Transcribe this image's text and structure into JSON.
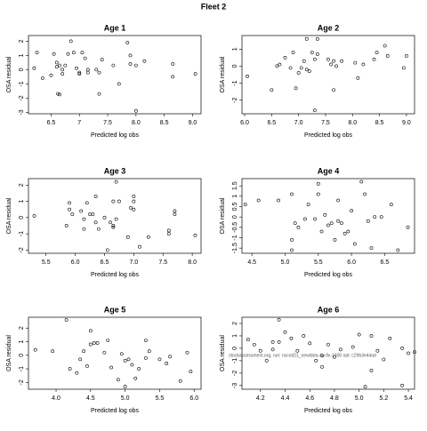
{
  "title": "Fleet 2",
  "footnote": "stockassessment.org, run: nscod21_newdata-4p-fix-1400 opt: c29b3e44ad",
  "chart_data": [
    {
      "type": "scatter",
      "title": "Age 1",
      "xlabel": "Predicted log obs",
      "ylabel": "OSA residual",
      "x": [
        6.2,
        6.25,
        6.35,
        6.5,
        6.55,
        6.6,
        6.6,
        6.62,
        6.65,
        6.65,
        6.7,
        6.7,
        6.75,
        6.8,
        6.85,
        6.9,
        6.95,
        7.0,
        7.0,
        7.05,
        7.1,
        7.15,
        7.15,
        7.3,
        7.35,
        7.35,
        7.4,
        7.6,
        7.7,
        7.85,
        7.9,
        7.9,
        8.0,
        8.0,
        8.15,
        8.65,
        8.65,
        9.05
      ],
      "values": [
        0.1,
        1.2,
        -0.6,
        -0.4,
        1.1,
        0.5,
        0.2,
        -1.7,
        -1.75,
        0.3,
        0,
        -0.3,
        0.3,
        1.1,
        2.0,
        1.2,
        0.1,
        -0.2,
        -0.3,
        1.2,
        0.8,
        -0.2,
        0,
        0,
        -0.2,
        -1.7,
        0.7,
        0.3,
        -1.0,
        1.9,
        0.4,
        1.0,
        -2.9,
        0.3,
        0.6,
        0.4,
        -0.5,
        -0.3
      ],
      "xlim": [
        6.1,
        9.15
      ],
      "ylim": [
        -3.1,
        2.4
      ],
      "xticks": [
        6.5,
        7.0,
        7.5,
        {
          "value": 8,
          "label": "8.0"
        },
        8.5,
        {
          "value": 9,
          "label": "9.0"
        }
      ],
      "yticks": [
        -3,
        -2,
        -1,
        0,
        1,
        2
      ]
    },
    {
      "type": "scatter",
      "title": "Age 2",
      "xlabel": "Predicted log obs",
      "ylabel": "OSA residual",
      "x": [
        6.05,
        6.5,
        6.6,
        6.65,
        6.75,
        6.85,
        6.9,
        6.95,
        7.0,
        7.05,
        7.1,
        7.15,
        7.15,
        7.2,
        7.25,
        7.3,
        7.3,
        7.35,
        7.35,
        7.55,
        7.6,
        7.65,
        7.65,
        7.7,
        7.8,
        8.05,
        8.1,
        8.2,
        8.4,
        8.45,
        8.6,
        8.65,
        8.95,
        9.0
      ],
      "values": [
        -0.6,
        -1.4,
        0,
        0.1,
        0.5,
        -0.1,
        0.8,
        -1.3,
        -0.4,
        -0.1,
        0.3,
        1.6,
        -0.2,
        -0.3,
        0.8,
        0.4,
        -2.6,
        0.7,
        1.6,
        0.4,
        0.1,
        0.3,
        -1.4,
        0,
        0.3,
        0.2,
        -0.7,
        0.1,
        0.4,
        0.8,
        1.2,
        0.6,
        -0.1,
        0.6
      ],
      "xlim": [
        5.95,
        9.15
      ],
      "ylim": [
        -2.8,
        1.8
      ],
      "xticks": [
        {
          "value": 6,
          "label": "6.0"
        },
        6.5,
        {
          "value": 7,
          "label": "7.0"
        },
        7.5,
        {
          "value": 8,
          "label": "8.0"
        },
        8.5,
        {
          "value": 9,
          "label": "9.0"
        }
      ],
      "yticks": [
        -2,
        -1,
        0,
        1
      ]
    },
    {
      "type": "scatter",
      "title": "Age 3",
      "xlabel": "Predicted log obs",
      "ylabel": "OSA residual",
      "x": [
        5.3,
        5.85,
        5.9,
        5.9,
        5.95,
        6.1,
        6.15,
        6.15,
        6.2,
        6.25,
        6.3,
        6.35,
        6.35,
        6.4,
        6.5,
        6.55,
        6.6,
        6.65,
        6.65,
        6.65,
        6.7,
        6.7,
        6.75,
        6.9,
        6.95,
        7.0,
        7.0,
        7.0,
        7.1,
        7.25,
        7.6,
        7.6,
        7.7,
        7.7,
        8.05
      ],
      "values": [
        0.1,
        -0.5,
        0.5,
        0.9,
        0.2,
        0.4,
        -0.1,
        -0.7,
        0.9,
        0.2,
        0.2,
        1.3,
        -0.3,
        -0.7,
        0,
        -2,
        -0.3,
        1,
        -0.5,
        -0.6,
        2.2,
        -0.1,
        1,
        -1.2,
        0.6,
        1.3,
        1,
        0.5,
        -1.8,
        -1.2,
        -0.8,
        -1,
        0.4,
        0.2,
        -1.1
      ],
      "xlim": [
        5.2,
        8.15
      ],
      "ylim": [
        -2.2,
        2.4
      ],
      "xticks": [
        5.5,
        {
          "value": 6,
          "label": "6.0"
        },
        6.5,
        {
          "value": 7,
          "label": "7.0"
        },
        7.5,
        {
          "value": 8,
          "label": "8.0"
        }
      ],
      "yticks": [
        -2,
        -1,
        0,
        1,
        2
      ]
    },
    {
      "type": "scatter",
      "title": "Age 4",
      "xlabel": "Predicted log obs",
      "ylabel": "OSA residual",
      "x": [
        4.4,
        4.6,
        4.9,
        5.1,
        5.15,
        5.2,
        5.1,
        5.1,
        5.3,
        5.35,
        5.45,
        5.5,
        5.5,
        5.55,
        5.6,
        5.65,
        5.7,
        5.75,
        5.8,
        5.8,
        5.85,
        5.9,
        5.95,
        6.0,
        6.05,
        6.15,
        6.2,
        6.25,
        6.3,
        6.35,
        6.45,
        6.6,
        6.7,
        6.85
      ],
      "values": [
        0.6,
        0.8,
        0.8,
        1.1,
        -0.3,
        -0.5,
        -1.6,
        -1.1,
        -0.1,
        0.6,
        -0.1,
        1.1,
        1.6,
        -0.7,
        0.1,
        -0.4,
        -0.3,
        -1.1,
        -0.2,
        0.8,
        -0.3,
        -0.8,
        -0.7,
        0.3,
        -1.3,
        1.7,
        1.1,
        -0.2,
        -1.5,
        0,
        0,
        0.6,
        -1.6,
        -0.5
      ],
      "xlim": [
        4.35,
        6.95
      ],
      "ylim": [
        -1.75,
        1.85
      ],
      "xticks": [
        4.5,
        {
          "value": 5,
          "label": "5.0"
        },
        5.5,
        {
          "value": 6,
          "label": "6.0"
        },
        6.5
      ],
      "yticks": [
        -1.5,
        -1,
        -0.5,
        0,
        0.5,
        1,
        1.5
      ]
    },
    {
      "type": "scatter",
      "title": "Age 5",
      "xlabel": "Predicted log obs",
      "ylabel": "OSA residual",
      "x": [
        3.7,
        3.95,
        4.15,
        4.2,
        4.3,
        4.35,
        4.4,
        4.45,
        4.5,
        4.5,
        4.55,
        4.6,
        4.7,
        4.75,
        4.8,
        4.9,
        4.95,
        5.0,
        5.0,
        5.05,
        5.1,
        5.15,
        5.2,
        5.3,
        5.3,
        5.35,
        5.5,
        5.6,
        5.65,
        5.8,
        5.9,
        5.95
      ],
      "values": [
        0.4,
        0.3,
        2.6,
        -1.0,
        -1.3,
        -0.3,
        0.3,
        -0.8,
        1.8,
        0.8,
        0.9,
        0.9,
        0.2,
        1.1,
        -0.9,
        -1.8,
        0.1,
        -0.4,
        -2.3,
        -0.3,
        -0.7,
        -1.7,
        -1.0,
        1.1,
        -0.2,
        0.3,
        -0.3,
        -0.6,
        -0.1,
        -1.9,
        0.2,
        -1.2
      ],
      "xlim": [
        3.6,
        6.1
      ],
      "ylim": [
        -2.5,
        2.8
      ],
      "xticks": [
        {
          "value": 4,
          "label": "4.0"
        },
        4.5,
        {
          "value": 5,
          "label": "5.0"
        },
        5.5,
        {
          "value": 6,
          "label": "6.0"
        }
      ],
      "yticks": [
        -2,
        -1,
        0,
        1,
        2
      ]
    },
    {
      "type": "scatter",
      "title": "Age 6",
      "xlabel": "Predicted log obs",
      "ylabel": "OSA residual",
      "x": [
        4.1,
        4.15,
        4.2,
        4.25,
        4.3,
        4.35,
        4.3,
        4.35,
        4.4,
        4.45,
        4.5,
        4.55,
        4.6,
        4.65,
        4.7,
        4.7,
        4.75,
        4.8,
        4.85,
        4.95,
        5.0,
        5.05,
        5.1,
        5.1,
        5.15,
        5.2,
        5.25,
        5.35,
        5.4,
        5.35,
        5.45
      ],
      "values": [
        0.7,
        0.3,
        -0.2,
        -1.0,
        0.5,
        0.5,
        -0.1,
        2.3,
        1.3,
        0.8,
        -0.2,
        1,
        0.4,
        -1,
        -1.5,
        -0.6,
        0.3,
        -0.7,
        -0.1,
        0.1,
        1.1,
        -3.1,
        1,
        -1.8,
        -0.2,
        -0.9,
        0.8,
        0,
        -0.4,
        -3.0,
        -0.3
      ],
      "xlim": [
        4.05,
        5.45
      ],
      "ylim": [
        -3.3,
        2.5
      ],
      "xticks": [
        4.2,
        4.4,
        4.6,
        4.8,
        {
          "value": 5,
          "label": "5.0"
        },
        5.2,
        5.4
      ],
      "yticks": [
        -3,
        -2,
        -1,
        0,
        1,
        2
      ]
    }
  ]
}
